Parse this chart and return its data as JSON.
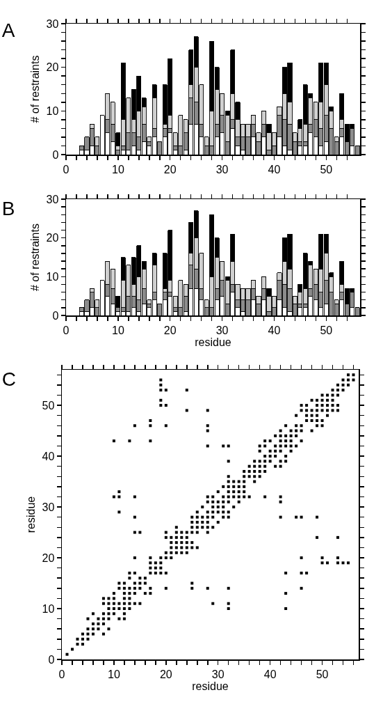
{
  "chart_data": [
    {
      "type": "bar",
      "title": "A",
      "ylabel": "# of restraints",
      "stacked": true,
      "x": [
        1,
        2,
        3,
        4,
        5,
        6,
        7,
        8,
        9,
        10,
        11,
        12,
        13,
        14,
        15,
        16,
        17,
        18,
        19,
        20,
        21,
        22,
        23,
        24,
        25,
        26,
        27,
        28,
        29,
        30,
        31,
        32,
        33,
        34,
        35,
        36,
        37,
        38,
        39,
        40,
        41,
        42,
        43,
        44,
        45,
        46,
        47,
        48,
        49,
        50,
        51,
        52,
        53,
        54,
        55,
        56
      ],
      "xlim": [
        0,
        56.5
      ],
      "xticks": [
        0,
        {
          "value": 2,
          "label": null
        },
        {
          "value": 4,
          "label": null
        },
        {
          "value": 6,
          "label": null
        },
        {
          "value": 8,
          "label": null
        },
        10,
        {
          "value": 12,
          "label": null
        },
        {
          "value": 14,
          "label": null
        },
        {
          "value": 16,
          "label": null
        },
        {
          "value": 18,
          "label": null
        },
        20,
        {
          "value": 22,
          "label": null
        },
        {
          "value": 24,
          "label": null
        },
        {
          "value": 26,
          "label": null
        },
        {
          "value": 28,
          "label": null
        },
        30,
        {
          "value": 32,
          "label": null
        },
        {
          "value": 34,
          "label": null
        },
        {
          "value": 36,
          "label": null
        },
        {
          "value": 38,
          "label": null
        },
        40,
        {
          "value": 42,
          "label": null
        },
        {
          "value": 44,
          "label": null
        },
        {
          "value": 46,
          "label": null
        },
        {
          "value": 48,
          "label": null
        },
        50,
        {
          "value": 52,
          "label": null
        },
        {
          "value": 54,
          "label": null
        }
      ],
      "ylim": [
        0,
        30
      ],
      "yticks": [
        0,
        {
          "value": 2,
          "label": null
        },
        {
          "value": 4,
          "label": null
        },
        {
          "value": 6,
          "label": null
        },
        {
          "value": 8,
          "label": null
        },
        10,
        {
          "value": 12,
          "label": null
        },
        {
          "value": 14,
          "label": null
        },
        {
          "value": 16,
          "label": null
        },
        {
          "value": 18,
          "label": null
        },
        20,
        {
          "value": 22,
          "label": null
        },
        {
          "value": 24,
          "label": null
        },
        {
          "value": 26,
          "label": null
        },
        {
          "value": 28,
          "label": null
        },
        30
      ],
      "series": [
        {
          "color": "#ffffff",
          "values": [
            0,
            0,
            1,
            1,
            2,
            0,
            9,
            5,
            3,
            0,
            1,
            1,
            2,
            1,
            3,
            2,
            4,
            0,
            4,
            5,
            1,
            0,
            1,
            7,
            7,
            4,
            0,
            0,
            4,
            5,
            0,
            6,
            2,
            1,
            0,
            4,
            0,
            4,
            0,
            0,
            4,
            2,
            1,
            0,
            2,
            2,
            5,
            4,
            2,
            3,
            0,
            0,
            4,
            0,
            2,
            0
          ]
        },
        {
          "color": "#8c8c8c",
          "values": [
            0,
            0,
            1,
            3,
            4,
            2,
            0,
            3,
            4,
            1,
            1,
            4,
            3,
            3,
            4,
            1,
            2,
            3,
            2,
            1,
            1,
            2,
            4,
            6,
            5,
            3,
            2,
            2,
            3,
            4,
            3,
            2,
            2,
            3,
            4,
            3,
            3,
            3,
            1,
            2,
            5,
            6,
            6,
            3,
            1,
            1,
            2,
            4,
            4,
            6,
            6,
            3,
            2,
            3,
            4,
            2
          ]
        },
        {
          "color": "#d0d0d0",
          "values": [
            0,
            0,
            0,
            0,
            1,
            2,
            0,
            6,
            5,
            1,
            6,
            8,
            3,
            6,
            4,
            1,
            7,
            0,
            1,
            3,
            3,
            7,
            3,
            3,
            8,
            9,
            2,
            8,
            8,
            5,
            6,
            6,
            4,
            3,
            3,
            2,
            2,
            3,
            4,
            3,
            2,
            6,
            5,
            2,
            3,
            4,
            6,
            4,
            6,
            7,
            4,
            1,
            2,
            0,
            0,
            0
          ]
        },
        {
          "color": "#000000",
          "values": [
            0,
            0,
            0,
            0,
            0,
            0,
            0,
            0,
            0,
            3,
            13,
            0,
            7,
            8,
            2,
            0,
            3,
            0,
            9,
            13,
            0,
            0,
            0,
            8,
            7,
            0,
            0,
            16,
            5,
            0,
            1,
            10,
            4,
            0,
            0,
            0,
            0,
            0,
            2,
            0,
            0,
            6,
            9,
            0,
            2,
            9,
            1,
            0,
            9,
            5,
            1,
            0,
            6,
            4,
            1,
            0
          ]
        }
      ]
    },
    {
      "type": "bar",
      "title": "B",
      "xlabel": "residue",
      "ylabel": "# of restraints",
      "stacked": true,
      "x": [
        1,
        2,
        3,
        4,
        5,
        6,
        7,
        8,
        9,
        10,
        11,
        12,
        13,
        14,
        15,
        16,
        17,
        18,
        19,
        20,
        21,
        22,
        23,
        24,
        25,
        26,
        27,
        28,
        29,
        30,
        31,
        32,
        33,
        34,
        35,
        36,
        37,
        38,
        39,
        40,
        41,
        42,
        43,
        44,
        45,
        46,
        47,
        48,
        49,
        50,
        51,
        52,
        53,
        54,
        55,
        56
      ],
      "xlim": [
        0,
        56.5
      ],
      "xticks": [
        0,
        {
          "value": 2,
          "label": null
        },
        {
          "value": 4,
          "label": null
        },
        {
          "value": 6,
          "label": null
        },
        {
          "value": 8,
          "label": null
        },
        10,
        {
          "value": 12,
          "label": null
        },
        {
          "value": 14,
          "label": null
        },
        {
          "value": 16,
          "label": null
        },
        {
          "value": 18,
          "label": null
        },
        20,
        {
          "value": 22,
          "label": null
        },
        {
          "value": 24,
          "label": null
        },
        {
          "value": 26,
          "label": null
        },
        {
          "value": 28,
          "label": null
        },
        30,
        {
          "value": 32,
          "label": null
        },
        {
          "value": 34,
          "label": null
        },
        {
          "value": 36,
          "label": null
        },
        {
          "value": 38,
          "label": null
        },
        40,
        {
          "value": 42,
          "label": null
        },
        {
          "value": 44,
          "label": null
        },
        {
          "value": 46,
          "label": null
        },
        {
          "value": 48,
          "label": null
        },
        50,
        {
          "value": 52,
          "label": null
        },
        {
          "value": 54,
          "label": null
        }
      ],
      "ylim": [
        0,
        30
      ],
      "yticks": [
        0,
        {
          "value": 2,
          "label": null
        },
        {
          "value": 4,
          "label": null
        },
        {
          "value": 6,
          "label": null
        },
        {
          "value": 8,
          "label": null
        },
        10,
        {
          "value": 12,
          "label": null
        },
        {
          "value": 14,
          "label": null
        },
        {
          "value": 16,
          "label": null
        },
        {
          "value": 18,
          "label": null
        },
        20,
        {
          "value": 22,
          "label": null
        },
        {
          "value": 24,
          "label": null
        },
        {
          "value": 26,
          "label": null
        },
        {
          "value": 28,
          "label": null
        },
        30
      ],
      "series": [
        {
          "color": "#ffffff",
          "values": [
            0,
            0,
            1,
            1,
            2,
            0,
            9,
            5,
            3,
            1,
            1,
            1,
            2,
            1,
            3,
            2,
            4,
            0,
            4,
            5,
            1,
            0,
            1,
            7,
            7,
            4,
            0,
            0,
            4,
            5,
            0,
            6,
            2,
            1,
            0,
            4,
            0,
            4,
            0,
            0,
            4,
            2,
            1,
            0,
            2,
            2,
            5,
            4,
            2,
            3,
            0,
            0,
            4,
            0,
            2,
            0
          ]
        },
        {
          "color": "#8c8c8c",
          "values": [
            0,
            0,
            1,
            3,
            4,
            2,
            0,
            3,
            4,
            1,
            1,
            4,
            3,
            3,
            4,
            1,
            2,
            3,
            2,
            1,
            1,
            2,
            4,
            6,
            5,
            3,
            2,
            2,
            3,
            4,
            3,
            2,
            2,
            3,
            4,
            3,
            3,
            3,
            1,
            2,
            5,
            6,
            6,
            3,
            1,
            1,
            2,
            4,
            4,
            6,
            6,
            3,
            2,
            3,
            4,
            2
          ]
        },
        {
          "color": "#d0d0d0",
          "values": [
            0,
            0,
            0,
            0,
            1,
            2,
            0,
            6,
            5,
            0,
            7,
            8,
            3,
            6,
            5,
            1,
            7,
            0,
            1,
            3,
            3,
            7,
            3,
            3,
            8,
            9,
            2,
            8,
            8,
            5,
            6,
            6,
            4,
            3,
            3,
            2,
            2,
            3,
            4,
            3,
            2,
            6,
            5,
            2,
            3,
            4,
            6,
            4,
            6,
            7,
            4,
            1,
            2,
            0,
            0,
            0
          ]
        },
        {
          "color": "#000000",
          "values": [
            0,
            0,
            0,
            0,
            0,
            0,
            0,
            0,
            0,
            3,
            6,
            0,
            7,
            8,
            2,
            0,
            3,
            0,
            9,
            13,
            0,
            0,
            0,
            8,
            7,
            0,
            0,
            16,
            5,
            0,
            1,
            7,
            0,
            0,
            0,
            0,
            0,
            0,
            2,
            0,
            0,
            6,
            9,
            0,
            2,
            9,
            1,
            0,
            9,
            5,
            1,
            0,
            6,
            4,
            1,
            0
          ]
        }
      ]
    },
    {
      "type": "scatter",
      "title": "C",
      "xlabel": "residue",
      "ylabel": "residue",
      "marker": "square",
      "xlim": [
        0,
        57
      ],
      "xticks": [
        0,
        {
          "value": 2,
          "label": null
        },
        {
          "value": 4,
          "label": null
        },
        {
          "value": 6,
          "label": null
        },
        {
          "value": 8,
          "label": null
        },
        10,
        {
          "value": 12,
          "label": null
        },
        {
          "value": 14,
          "label": null
        },
        {
          "value": 16,
          "label": null
        },
        {
          "value": 18,
          "label": null
        },
        20,
        {
          "value": 22,
          "label": null
        },
        {
          "value": 24,
          "label": null
        },
        {
          "value": 26,
          "label": null
        },
        {
          "value": 28,
          "label": null
        },
        30,
        {
          "value": 32,
          "label": null
        },
        {
          "value": 34,
          "label": null
        },
        {
          "value": 36,
          "label": null
        },
        {
          "value": 38,
          "label": null
        },
        40,
        {
          "value": 42,
          "label": null
        },
        {
          "value": 44,
          "label": null
        },
        {
          "value": 46,
          "label": null
        },
        {
          "value": 48,
          "label": null
        },
        50,
        {
          "value": 52,
          "label": null
        },
        {
          "value": 54,
          "label": null
        },
        {
          "value": 56,
          "label": null
        }
      ],
      "ylim": [
        0,
        57
      ],
      "yticks": [
        0,
        {
          "value": 2,
          "label": null
        },
        {
          "value": 4,
          "label": null
        },
        {
          "value": 6,
          "label": null
        },
        {
          "value": 8,
          "label": null
        },
        10,
        {
          "value": 12,
          "label": null
        },
        {
          "value": 14,
          "label": null
        },
        {
          "value": 16,
          "label": null
        },
        {
          "value": 18,
          "label": null
        },
        20,
        {
          "value": 22,
          "label": null
        },
        {
          "value": 24,
          "label": null
        },
        {
          "value": 26,
          "label": null
        },
        {
          "value": 28,
          "label": null
        },
        30,
        {
          "value": 32,
          "label": null
        },
        {
          "value": 34,
          "label": null
        },
        {
          "value": 36,
          "label": null
        },
        {
          "value": 38,
          "label": null
        },
        40,
        {
          "value": 42,
          "label": null
        },
        {
          "value": 44,
          "label": null
        },
        {
          "value": 46,
          "label": null
        },
        {
          "value": 48,
          "label": null
        },
        50,
        {
          "value": 52,
          "label": null
        },
        {
          "value": 54,
          "label": null
        },
        {
          "value": 56,
          "label": null
        }
      ],
      "series": [
        {
          "color": "#000000",
          "x": [
            1,
            2,
            3,
            4,
            3,
            4,
            5,
            4,
            5,
            6,
            8,
            5,
            6,
            7,
            9,
            6,
            7,
            8,
            5,
            7,
            8,
            9,
            11,
            12,
            6,
            8,
            9,
            10,
            12,
            9,
            10,
            11,
            12,
            13,
            8,
            9,
            10,
            11,
            12,
            13,
            14,
            15,
            8,
            9,
            10,
            12,
            13,
            10,
            12,
            13,
            14,
            16,
            17,
            11,
            12,
            13,
            14,
            15,
            17,
            20,
            25,
            11,
            12,
            14,
            15,
            16,
            25,
            13,
            15,
            16,
            13,
            14,
            17,
            18,
            19,
            20,
            17,
            18,
            19,
            17,
            18,
            19,
            14,
            17,
            19,
            20,
            21,
            20,
            21,
            22,
            23,
            24,
            21,
            22,
            23,
            24,
            25,
            26,
            21,
            22,
            23,
            24,
            25,
            20,
            21,
            22,
            23,
            24,
            14,
            15,
            20,
            22,
            23,
            24,
            25,
            26,
            22,
            25,
            26,
            27,
            25,
            26,
            27,
            25,
            26,
            27,
            14,
            11,
            26,
            27,
            10,
            11,
            14,
            11,
            10,
            13,
            17,
            14,
            17,
            17,
            20,
            24,
            19,
            20,
            19,
            19,
            20,
            19,
            19,
            24,
            28,
            28,
            28,
            28,
            28,
            28,
            28,
            28,
            28,
            28,
            28,
            28,
            29,
            29,
            29,
            29,
            29,
            29,
            29,
            30,
            30,
            30,
            30,
            30,
            31,
            31,
            31,
            31,
            31,
            31,
            31,
            32,
            32,
            32,
            32,
            32,
            32,
            32,
            32,
            32,
            32,
            32,
            32,
            32,
            33,
            33,
            33,
            33,
            33,
            34,
            34,
            34,
            34,
            34,
            35,
            35,
            35,
            35,
            35,
            35,
            36,
            36,
            36,
            36,
            37,
            37,
            37,
            37,
            37,
            38,
            38,
            38,
            38,
            38,
            38,
            39,
            39,
            39,
            39,
            39,
            39,
            39,
            40,
            40,
            40,
            40,
            41,
            41,
            41,
            41,
            41,
            42,
            42,
            42,
            42,
            42,
            42,
            42,
            42,
            42,
            42,
            43,
            43,
            43,
            43,
            43,
            43,
            43,
            43,
            43,
            44,
            44,
            44,
            44,
            44,
            45,
            45,
            45,
            45,
            45,
            45,
            46,
            46,
            46,
            46,
            46,
            46,
            46,
            46,
            46,
            47,
            47,
            47,
            47,
            47,
            48,
            48,
            48,
            48,
            48,
            49,
            49,
            49,
            49,
            49,
            49,
            49,
            49,
            50,
            50,
            50,
            50,
            50,
            50,
            50,
            50,
            51,
            51,
            51,
            51,
            51,
            51,
            52,
            52,
            52,
            52,
            52,
            53,
            53,
            53,
            53,
            53,
            53,
            53,
            53,
            54,
            54,
            54,
            54,
            55,
            55,
            55,
            55,
            56,
            56
          ],
          "values": [
            1,
            2,
            3,
            3,
            4,
            4,
            4,
            5,
            5,
            5,
            5,
            6,
            6,
            6,
            6,
            7,
            7,
            7,
            8,
            8,
            8,
            8,
            8,
            8,
            9,
            9,
            9,
            9,
            9,
            10,
            10,
            10,
            10,
            10,
            11,
            11,
            11,
            11,
            11,
            11,
            11,
            11,
            12,
            12,
            12,
            12,
            12,
            13,
            13,
            13,
            13,
            13,
            13,
            14,
            14,
            14,
            14,
            14,
            14,
            14,
            14,
            15,
            15,
            15,
            15,
            15,
            15,
            16,
            16,
            16,
            17,
            17,
            17,
            17,
            17,
            17,
            18,
            18,
            18,
            19,
            19,
            19,
            20,
            20,
            20,
            20,
            20,
            21,
            21,
            21,
            21,
            21,
            22,
            22,
            22,
            22,
            22,
            22,
            23,
            23,
            23,
            23,
            23,
            24,
            24,
            24,
            24,
            24,
            25,
            25,
            25,
            25,
            25,
            25,
            25,
            25,
            26,
            26,
            26,
            26,
            27,
            27,
            27,
            28,
            28,
            28,
            28,
            29,
            29,
            30,
            32,
            32,
            32,
            33,
            43,
            43,
            43,
            46,
            46,
            47,
            46,
            49,
            50,
            50,
            51,
            53,
            53,
            54,
            55,
            53,
            14,
            25,
            26,
            27,
            28,
            29,
            31,
            32,
            42,
            45,
            46,
            49,
            11,
            26,
            28,
            29,
            30,
            31,
            32,
            27,
            29,
            30,
            31,
            33,
            28,
            29,
            30,
            31,
            32,
            34,
            42,
            10,
            11,
            14,
            28,
            29,
            31,
            32,
            33,
            34,
            35,
            36,
            39,
            42,
            30,
            32,
            33,
            34,
            35,
            31,
            32,
            33,
            34,
            35,
            32,
            33,
            34,
            35,
            36,
            37,
            32,
            36,
            37,
            38,
            35,
            36,
            37,
            38,
            39,
            36,
            37,
            38,
            39,
            41,
            42,
            32,
            37,
            38,
            39,
            40,
            42,
            43,
            39,
            40,
            41,
            43,
            38,
            40,
            41,
            42,
            44,
            28,
            31,
            32,
            38,
            39,
            41,
            42,
            43,
            44,
            45,
            10,
            13,
            17,
            39,
            40,
            42,
            43,
            44,
            46,
            41,
            42,
            43,
            44,
            45,
            28,
            42,
            44,
            45,
            46,
            48,
            14,
            17,
            20,
            28,
            43,
            45,
            46,
            49,
            50,
            17,
            47,
            48,
            49,
            50,
            45,
            47,
            48,
            49,
            51,
            24,
            28,
            46,
            47,
            48,
            49,
            50,
            51,
            19,
            20,
            46,
            47,
            49,
            50,
            51,
            52,
            19,
            48,
            49,
            50,
            51,
            52,
            49,
            50,
            51,
            52,
            53,
            19,
            20,
            24,
            49,
            50,
            52,
            53,
            54,
            19,
            53,
            54,
            55,
            19,
            54,
            55,
            56,
            55,
            56
          ]
        }
      ]
    }
  ]
}
